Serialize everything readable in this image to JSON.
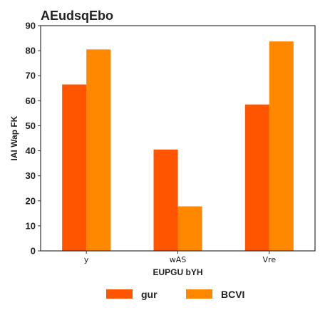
{
  "chart_data": {
    "type": "bar",
    "title": "AEudsqEbo",
    "xlabel": "EUPGU bYH",
    "ylabel": "IAI  Wap FK",
    "categories": [
      "y",
      "wAS",
      "Vre"
    ],
    "series": [
      {
        "name": "gur",
        "values": [
          66.5,
          40.5,
          58.5
        ],
        "color": "#ff5500"
      },
      {
        "name": "BCVI",
        "values": [
          80.5,
          17.8,
          83.7
        ],
        "color": "#ff8800"
      }
    ],
    "ylim": [
      0,
      90
    ],
    "yticks": [
      0,
      10,
      20,
      30,
      40,
      50,
      60,
      70,
      80,
      90
    ],
    "yticklabels": [
      "0",
      "10",
      "20",
      "30",
      "40",
      "50",
      "60",
      "70",
      "80",
      "90"
    ],
    "grid": false,
    "legend": "bottom-center"
  }
}
